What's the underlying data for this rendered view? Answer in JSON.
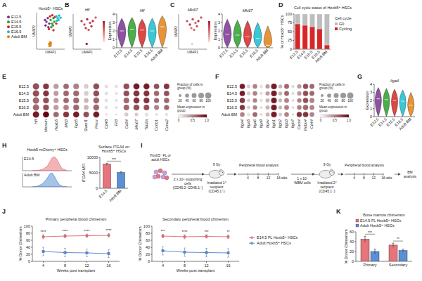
{
  "chart_data": [
    {
      "type": "scatter",
      "panel_label": "A",
      "title": "Hoxb5⁺ HSCs",
      "x_label": "UMAP1",
      "y_label": "UMAP2",
      "xlim": [
        0,
        10
      ],
      "ylim": [
        0,
        10
      ],
      "tick_labels": false,
      "legend": "left",
      "marker": "circle",
      "series": [
        {
          "name": "E12.5",
          "color": "#7b3294",
          "x": [
            3,
            3.5,
            4,
            4.5,
            3.2,
            4.2
          ],
          "values": [
            8,
            7.5,
            8.5,
            7,
            6.5,
            6
          ]
        },
        {
          "name": "E14.5",
          "color": "#2ca02c",
          "x": [
            5,
            5.5,
            6,
            5.2,
            6.3,
            5.8
          ],
          "values": [
            8,
            7,
            8.5,
            6,
            7.5,
            6.5
          ]
        },
        {
          "name": "E15.5",
          "color": "#d62728",
          "x": [
            4.8,
            5.6,
            6.5,
            4.4,
            7,
            6
          ],
          "values": [
            9,
            9.3,
            8.8,
            5.5,
            7,
            5.2
          ]
        },
        {
          "name": "E16.5",
          "color": "#17becf",
          "x": [
            7,
            7.5,
            8,
            7.8,
            8.5,
            7.2
          ],
          "values": [
            9,
            8.5,
            9.2,
            8,
            8.6,
            7.8
          ]
        },
        {
          "name": "Adult BM",
          "color": "#e08214",
          "x": [
            4.5,
            4.8,
            5.1,
            4.6,
            5,
            4.9
          ],
          "values": [
            1.5,
            1.2,
            1.6,
            0.9,
            1,
            1.9
          ]
        }
      ]
    },
    {
      "type": "scatter",
      "panel_label": "B",
      "title": "Hlf",
      "x_label": "UMAP1",
      "y_label": "UMAP2",
      "xlim": [
        0,
        10
      ],
      "ylim": [
        0,
        10
      ],
      "tick_labels": false,
      "marker": "circle",
      "color": "#b2182b",
      "expression_range": [
        0,
        3
      ],
      "x": [
        3,
        4,
        5,
        6,
        7,
        8,
        4.5,
        5.5,
        6.5,
        4.8
      ],
      "values": [
        8,
        7,
        8.5,
        7.5,
        8,
        9,
        6,
        5.5,
        6.5,
        1.5
      ],
      "expression": [
        2.5,
        2,
        2.8,
        2.2,
        2.6,
        1.8,
        2.4,
        2,
        2.5,
        3
      ]
    },
    {
      "type": "violin",
      "title": "Hlf",
      "y_label": "Expression",
      "categories": [
        "E12.5",
        "E14.5",
        "E15.5",
        "E16.5",
        "Adult BM"
      ],
      "values": [
        2.0,
        2.2,
        2.1,
        2.0,
        2.5
      ],
      "min": [
        0,
        0,
        0,
        0,
        0
      ],
      "max": [
        3.5,
        3.6,
        3.4,
        3.5,
        3.8
      ],
      "ylim": [
        0,
        4
      ],
      "yticks": [
        0,
        1,
        2,
        3,
        4
      ],
      "colors": [
        "#7b3294",
        "#2ca02c",
        "#d62728",
        "#17becf",
        "#e08214"
      ]
    },
    {
      "type": "scatter",
      "panel_label": "C",
      "title": "Mki67",
      "x_label": "UMAP1",
      "y_label": "UMAP2",
      "xlim": [
        0,
        10
      ],
      "ylim": [
        0,
        10
      ],
      "tick_labels": false,
      "marker": "circle",
      "color": "#b2182b",
      "expression_range": [
        0,
        3
      ],
      "x": [
        3,
        4,
        5,
        6,
        7,
        8,
        4.5,
        5.5,
        6.5,
        4.8
      ],
      "values": [
        8,
        7,
        8.5,
        7.5,
        8,
        9,
        6,
        5.5,
        6.5,
        1.5
      ],
      "expression": [
        2,
        2.5,
        2.2,
        1.8,
        2.6,
        2,
        1.5,
        1.7,
        2.1,
        0.3
      ]
    },
    {
      "type": "violin",
      "title": "Mki67",
      "y_label": "Expression",
      "categories": [
        "E12.5",
        "E14.5",
        "E15.5",
        "E16.5",
        "Adult BM"
      ],
      "values": [
        1.6,
        1.5,
        1.3,
        1.1,
        0.3
      ],
      "min": [
        0,
        0,
        0,
        0,
        0
      ],
      "max": [
        3.4,
        3.3,
        3.2,
        3.0,
        2.6
      ],
      "ylim": [
        0,
        4
      ],
      "yticks": [
        0,
        1,
        2,
        3,
        4
      ],
      "colors": [
        "#7b3294",
        "#2ca02c",
        "#d62728",
        "#17becf",
        "#e08214"
      ]
    },
    {
      "type": "bar",
      "stacked": true,
      "panel_label": "D",
      "title": "Cell cycle status of Hoxb5⁺ HSCs",
      "y_label": "% of Hoxb5⁺ HSCs",
      "legend_title": "Cell cycle",
      "legend": "right",
      "categories": [
        "E12.5",
        "E14.5",
        "E15.5",
        "E16.5",
        "Adult BM"
      ],
      "ylim": [
        0,
        100
      ],
      "yticks": [
        0,
        25,
        50,
        75,
        100
      ],
      "series": [
        {
          "name": "Cycling",
          "color": "#d62728",
          "values": [
            72,
            68,
            64,
            58,
            12
          ]
        },
        {
          "name": "G0",
          "color": "#bdbdbd",
          "values": [
            28,
            32,
            36,
            42,
            88
          ]
        }
      ]
    },
    {
      "type": "dotplot",
      "panel_label": "E",
      "categories": [
        "Hlf",
        "Mecom",
        "Hoxb5",
        "Mllt3",
        "Fgd5",
        "Slamf1",
        "Procr",
        "Cd48",
        "Flt3",
        "Cd34",
        "Mki67",
        "Top2a",
        "Ccnb1",
        "Ccna2"
      ],
      "rows": [
        "E12.5",
        "E14.5",
        "E15.5",
        "E16.5",
        "Adult BM"
      ],
      "fraction": [
        [
          95,
          80,
          60,
          70,
          75,
          40,
          85,
          20,
          15,
          80,
          90,
          85,
          70,
          75
        ],
        [
          95,
          82,
          55,
          72,
          78,
          42,
          85,
          18,
          12,
          78,
          88,
          82,
          65,
          70
        ],
        [
          93,
          80,
          58,
          70,
          80,
          45,
          83,
          18,
          12,
          75,
          85,
          80,
          60,
          66
        ],
        [
          92,
          78,
          57,
          68,
          80,
          48,
          82,
          20,
          10,
          72,
          80,
          75,
          55,
          60
        ],
        [
          97,
          90,
          70,
          80,
          90,
          75,
          90,
          10,
          5,
          30,
          25,
          20,
          10,
          12
        ]
      ],
      "expression": [
        [
          0.7,
          0.8,
          0.4,
          0.6,
          0.5,
          0.2,
          0.7,
          0.1,
          0.1,
          0.7,
          0.9,
          0.9,
          0.7,
          0.8
        ],
        [
          0.7,
          0.8,
          0.4,
          0.6,
          0.6,
          0.2,
          0.7,
          0.1,
          0.1,
          0.7,
          0.8,
          0.8,
          0.6,
          0.7
        ],
        [
          0.6,
          0.7,
          0.4,
          0.6,
          0.6,
          0.3,
          0.6,
          0.1,
          0.1,
          0.6,
          0.8,
          0.8,
          0.6,
          0.6
        ],
        [
          0.6,
          0.7,
          0.4,
          0.5,
          0.6,
          0.3,
          0.6,
          0.1,
          0.1,
          0.6,
          0.7,
          0.7,
          0.5,
          0.6
        ],
        [
          0.9,
          1.0,
          0.6,
          0.8,
          0.9,
          0.7,
          0.9,
          0.05,
          0.05,
          0.2,
          0.2,
          0.1,
          0.1,
          0.1
        ]
      ],
      "color": "#67000d",
      "color_range": [
        0,
        1
      ],
      "color_ticks": [
        0,
        0.5,
        {
          "value": 1,
          "label": "1.0"
        }
      ],
      "size_legend_title": "Fraction of cells in group (%)",
      "size_ticks": [
        20,
        40,
        60,
        80,
        100
      ],
      "color_legend_title": "Mean expression in group"
    },
    {
      "type": "dotplot",
      "panel_label": "F",
      "categories": [
        "Itga4",
        "Itga5",
        "Itga6",
        "Itga9",
        "Itgav",
        "Itgb1",
        "Itgb2",
        "Itgb3",
        "Itgb7",
        "Cxcr4",
        "Robo4",
        "Cd44"
      ],
      "rows": [
        "E12.5",
        "E14.5",
        "E15.5",
        "E16.5",
        "Adult BM"
      ],
      "fraction": [
        [
          85,
          30,
          60,
          20,
          50,
          95,
          40,
          70,
          20,
          50,
          80,
          70
        ],
        [
          85,
          28,
          58,
          18,
          48,
          95,
          38,
          68,
          18,
          52,
          80,
          70
        ],
        [
          82,
          25,
          55,
          18,
          45,
          95,
          35,
          65,
          15,
          55,
          80,
          68
        ],
        [
          80,
          25,
          55,
          15,
          45,
          95,
          35,
          65,
          15,
          58,
          78,
          66
        ],
        [
          60,
          20,
          65,
          15,
          40,
          95,
          30,
          60,
          10,
          80,
          85,
          60
        ]
      ],
      "expression": [
        [
          0.9,
          0.2,
          0.5,
          0.1,
          0.4,
          0.9,
          0.3,
          0.6,
          0.1,
          0.4,
          0.7,
          0.6
        ],
        [
          0.9,
          0.2,
          0.5,
          0.1,
          0.4,
          0.9,
          0.3,
          0.6,
          0.1,
          0.4,
          0.7,
          0.6
        ],
        [
          0.8,
          0.2,
          0.5,
          0.1,
          0.3,
          0.9,
          0.3,
          0.5,
          0.1,
          0.5,
          0.7,
          0.5
        ],
        [
          0.8,
          0.2,
          0.5,
          0.1,
          0.3,
          0.9,
          0.3,
          0.5,
          0.1,
          0.5,
          0.6,
          0.5
        ],
        [
          0.5,
          0.1,
          0.6,
          0.1,
          0.3,
          0.9,
          0.2,
          0.5,
          0.1,
          0.8,
          0.8,
          0.5
        ]
      ],
      "color": "#67000d",
      "color_range": [
        0,
        1
      ],
      "color_ticks": [
        0,
        0.5,
        {
          "value": 1,
          "label": "1.0"
        }
      ],
      "size_legend_title": "Fraction of cells in group (%)",
      "size_ticks": [
        20,
        40,
        60,
        80,
        100
      ],
      "color_legend_title": "Mean expression in group"
    },
    {
      "type": "violin",
      "panel_label": "G",
      "title": "Itga4",
      "y_label": "Expression",
      "categories": [
        "E12.5",
        "E14.5",
        "E15.5",
        "E16.5",
        "Adult BM"
      ],
      "values": [
        2.2,
        2.1,
        2.0,
        1.9,
        1.4
      ],
      "min": [
        0,
        0,
        0,
        0,
        0
      ],
      "max": [
        3.6,
        3.5,
        3.4,
        3.3,
        3.0
      ],
      "ylim": [
        0,
        4
      ],
      "yticks": [
        0,
        1,
        2,
        3,
        4
      ],
      "colors": [
        "#7b3294",
        "#2ca02c",
        "#d62728",
        "#17becf",
        "#e08214"
      ]
    },
    {
      "type": "area",
      "panel_label": "H",
      "title": "Hoxb5-mCherry⁺ HSCs",
      "xlim": [
        0,
        10
      ],
      "ylim": [
        0,
        100
      ],
      "tick_labels": false,
      "series": [
        {
          "name": "E14.5",
          "color": "#e8737a",
          "x": [
            2,
            3,
            4,
            5,
            5.5,
            6,
            6.5,
            7,
            7.5,
            8,
            9
          ],
          "values": [
            0,
            2,
            8,
            30,
            60,
            90,
            100,
            80,
            45,
            15,
            2
          ]
        },
        {
          "name": "Adult BM",
          "color": "#5b8fd6",
          "x": [
            2,
            3,
            4,
            5,
            5.5,
            6,
            6.5,
            7,
            7.5,
            8,
            9
          ],
          "values": [
            0,
            5,
            20,
            60,
            90,
            100,
            75,
            40,
            15,
            5,
            0
          ]
        }
      ]
    },
    {
      "type": "bar",
      "title": "Surface ITGA4 on Hoxb5⁺ HSCs",
      "y_label": "ITGA4 MFI",
      "categories": [
        "E14.5",
        "Adult BM"
      ],
      "values": [
        7800,
        5100
      ],
      "errors": [
        300,
        250
      ],
      "colors": [
        "#e8737a",
        "#5b8fd6"
      ],
      "ylim": [
        0,
        10000
      ],
      "yticks": [
        0,
        5000,
        10000
      ],
      "annotations": [
        "***"
      ]
    },
    {
      "type": "diagram",
      "panel_label": "I",
      "nodes": [
        {
          "label": "Hoxb5⁺ FL or adult HSCs"
        },
        {
          "label": "2 x 10⁵ supporting cells (CD45.2⁺CD45.1⁺)"
        },
        {
          "label": "9 Gy"
        },
        {
          "label": "Irradiated 1° recipient (CD45.1⁺)"
        },
        {
          "label": "Peripheral blood analysis"
        },
        {
          "label": "1 x 10⁷ WBM cells"
        },
        {
          "label": "9 Gy"
        },
        {
          "label": "Irradiated 2° recipient (CD45.1⁺)"
        },
        {
          "label": "Peripheral blood analysis"
        },
        {
          "label": "BM analysis"
        }
      ],
      "timeline": {
        "ticks": [
          "4",
          "8",
          "12",
          "16"
        ],
        "unit": "wks"
      }
    },
    {
      "type": "line",
      "panel_label": "J",
      "title": "Primary peripheral blood chimerism",
      "x_label": "Weeks post transplant",
      "y_label": "% Donor Chimerism",
      "x": [
        4,
        8,
        12,
        16
      ],
      "xlim": [
        2,
        18
      ],
      "xticks": [
        4,
        8,
        12,
        16
      ],
      "ylim": [
        0,
        100
      ],
      "yticks": [
        0,
        20,
        40,
        60,
        80,
        100
      ],
      "series": [
        {
          "color": "#e8737a",
          "marker": "circle",
          "values": [
            70,
            72,
            73,
            74
          ],
          "errors": [
            6,
            5,
            5,
            5
          ]
        },
        {
          "color": "#5b8fd6",
          "marker": "square",
          "values": [
            28,
            25,
            24,
            22
          ],
          "errors": [
            12,
            12,
            11,
            11
          ]
        }
      ],
      "annotations": [
        "****",
        "****",
        "****",
        "****"
      ]
    },
    {
      "type": "line",
      "title": "Secondary peripheral blood chimerism",
      "x_label": "Weeks post transplant",
      "y_label": "% Donor Chimerism",
      "x": [
        4,
        8,
        12,
        16
      ],
      "xlim": [
        2,
        18
      ],
      "xticks": [
        4,
        8,
        12,
        16
      ],
      "ylim": [
        0,
        100
      ],
      "yticks": [
        0,
        20,
        40,
        60,
        80,
        100
      ],
      "legend": "right",
      "series": [
        {
          "name": "E14.5 FL Hoxb5⁺ HSCs",
          "color": "#e8737a",
          "marker": "circle",
          "values": [
            72,
            70,
            71,
            70
          ],
          "errors": [
            5,
            6,
            5,
            5
          ]
        },
        {
          "name": "Adult Hoxb5⁺ HSCs",
          "color": "#5b8fd6",
          "marker": "square",
          "values": [
            30,
            26,
            25,
            24
          ],
          "errors": [
            12,
            12,
            12,
            12
          ]
        }
      ],
      "annotations": [
        "***",
        "****",
        "***",
        "**"
      ]
    },
    {
      "type": "bar",
      "panel_label": "K",
      "title": "Bone marrow chimerism",
      "y_label": "% Donor Chimerism",
      "categories": [
        "Primary",
        "Secondary"
      ],
      "ylim": [
        0,
        60
      ],
      "yticks": [
        0,
        20,
        40,
        60
      ],
      "legend": "top",
      "series": [
        {
          "name": "E14.5 FL Hoxb5⁺ HSCs",
          "color": "#e8737a",
          "values": [
            45,
            33
          ],
          "errors": [
            6,
            4
          ]
        },
        {
          "name": "Adult Hoxb5⁺ HSCs",
          "color": "#5b8fd6",
          "values": [
            20,
            22
          ],
          "errors": [
            5,
            3
          ]
        }
      ],
      "annotations": [
        "***",
        "**"
      ]
    }
  ]
}
